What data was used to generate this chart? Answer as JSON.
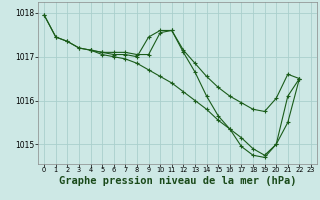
{
  "background_color": "#cde8e5",
  "grid_color": "#aacfcc",
  "line_color": "#1a5c1a",
  "xlabel": "Graphe pression niveau de la mer (hPa)",
  "xlabel_fontsize": 7.5,
  "ylabel_ticks": [
    1015,
    1016,
    1017,
    1018
  ],
  "xlim": [
    -0.5,
    23.5
  ],
  "ylim": [
    1014.55,
    1018.25
  ],
  "xticks": [
    0,
    1,
    2,
    3,
    4,
    5,
    6,
    7,
    8,
    9,
    10,
    11,
    12,
    13,
    14,
    15,
    16,
    17,
    18,
    19,
    20,
    21,
    22,
    23
  ],
  "series": [
    {
      "x": [
        0,
        1,
        2,
        3,
        4,
        5,
        6,
        7,
        8,
        9,
        10,
        11,
        12,
        13,
        14,
        15,
        16,
        17,
        18,
        19,
        20,
        21,
        22
      ],
      "y": [
        1017.95,
        1017.45,
        1017.35,
        1017.2,
        1017.15,
        1017.1,
        1017.1,
        1017.1,
        1017.05,
        1017.05,
        1017.55,
        1017.6,
        1017.15,
        1016.85,
        1016.55,
        1016.3,
        1016.1,
        1015.95,
        1015.8,
        1015.75,
        1016.05,
        1016.6,
        1016.5
      ]
    },
    {
      "x": [
        0,
        1,
        2,
        3,
        4
      ],
      "y": [
        1017.95,
        1017.45,
        1017.35,
        1017.2,
        1017.15
      ]
    },
    {
      "x": [
        4,
        5,
        6,
        7,
        8,
        9,
        10,
        11,
        12,
        13,
        14,
        15,
        16,
        17,
        18,
        19,
        20,
        21,
        22
      ],
      "y": [
        1017.15,
        1017.1,
        1017.05,
        1017.05,
        1017.0,
        1017.45,
        1017.6,
        1017.6,
        1017.1,
        1016.65,
        1016.1,
        1015.65,
        1015.35,
        1014.95,
        1014.75,
        1014.7,
        1015.0,
        1016.1,
        1016.5
      ]
    },
    {
      "x": [
        4,
        5,
        6,
        7,
        8,
        9,
        10,
        11,
        12,
        13,
        14,
        15,
        16,
        17,
        18,
        19,
        20,
        21,
        22
      ],
      "y": [
        1017.15,
        1017.05,
        1017.0,
        1016.95,
        1016.85,
        1016.7,
        1016.55,
        1016.4,
        1016.2,
        1016.0,
        1015.8,
        1015.55,
        1015.35,
        1015.15,
        1014.9,
        1014.75,
        1015.0,
        1015.5,
        1016.5
      ]
    }
  ]
}
